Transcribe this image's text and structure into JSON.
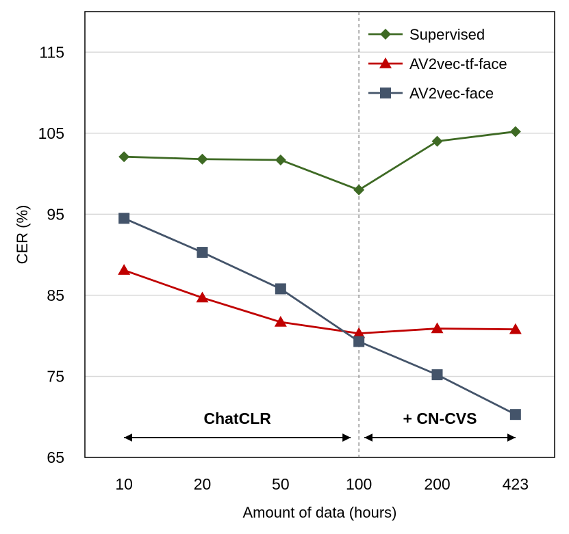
{
  "chart_data": {
    "type": "line",
    "title": "",
    "xlabel": "Amount of data (hours)",
    "ylabel": "CER (%)",
    "categories": [
      "10",
      "20",
      "50",
      "100",
      "200",
      "423"
    ],
    "ylim": [
      65,
      120
    ],
    "yticks": [
      65,
      75,
      85,
      95,
      105,
      115
    ],
    "grid": "horizontal",
    "legend_position": "top-right",
    "series": [
      {
        "name": "Supervised",
        "color": "#3e6a24",
        "marker": "diamond",
        "values": [
          102.1,
          101.8,
          101.7,
          98.0,
          104.0,
          105.2
        ]
      },
      {
        "name": "AV2vec-tf-face",
        "color": "#c00000",
        "marker": "triangle",
        "values": [
          88.1,
          84.7,
          81.7,
          80.3,
          80.9,
          80.8
        ]
      },
      {
        "name": "AV2vec-face",
        "color": "#44546a",
        "marker": "square",
        "values": [
          94.5,
          90.3,
          85.8,
          79.3,
          75.2,
          70.3
        ]
      }
    ],
    "divider_after_category": "100",
    "regions": [
      {
        "label": "ChatCLR",
        "from": "10",
        "to": "100"
      },
      {
        "label": "+ CN-CVS",
        "from": "100",
        "to": "423"
      }
    ]
  }
}
